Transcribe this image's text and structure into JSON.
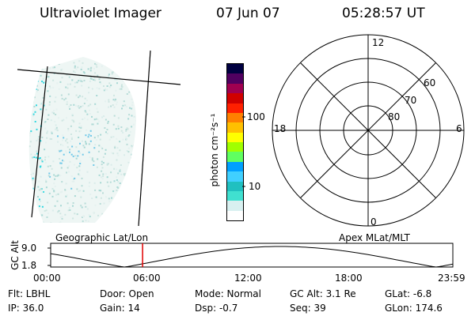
{
  "header": {
    "title": "Ultraviolet Imager",
    "date": "07 Jun 07",
    "time": "05:28:57 UT"
  },
  "colorbar": {
    "unit_label": "photon cm⁻²s⁻¹",
    "ticks": [
      "100",
      "10"
    ],
    "colors": [
      "#ffffff",
      "#d8f0f0",
      "#40e0d0",
      "#20c0c0",
      "#40d0ff",
      "#00a0ff",
      "#60ff60",
      "#a0ff00",
      "#ffff00",
      "#ffc000",
      "#ff8000",
      "#ff2000",
      "#d00000",
      "#a00050",
      "#500060",
      "#000040"
    ]
  },
  "geographic": {
    "label": "Geographic Lat/Lon"
  },
  "polar": {
    "label": "Apex MLat/MLT",
    "mlt_labels": {
      "top": "12",
      "bottom": "0",
      "left": "18",
      "right": "6"
    },
    "lat_labels": [
      "60",
      "70",
      "80"
    ]
  },
  "altitude_plot": {
    "ylabel": "GC Alt",
    "yticks": [
      "9.0",
      "1.8"
    ],
    "xticks": [
      "00:00",
      "06:00",
      "12:00",
      "18:00",
      "23:59"
    ],
    "marker_time_hours": 5.483
  },
  "info": {
    "row1": {
      "flt": "Flt: LBHL",
      "door": "Door: Open",
      "mode": "Mode: Normal",
      "gcalt": "GC Alt: 3.1 Re",
      "glat": "GLat:  -6.8"
    },
    "row2": {
      "ip": "IP: 36.0",
      "gain": "Gain: 14",
      "dsp": "Dsp:   -0.7",
      "seq": "Seq: 39",
      "glon": "GLon: 174.6"
    }
  }
}
